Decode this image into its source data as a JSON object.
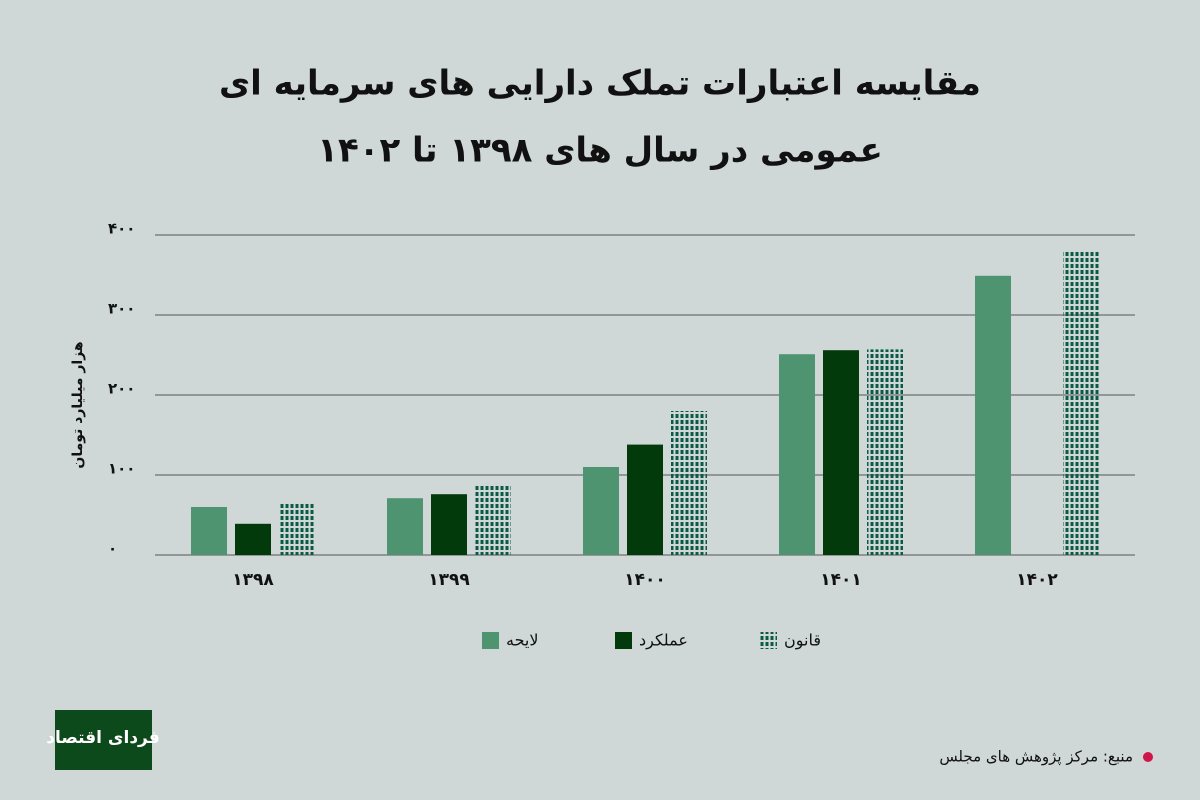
{
  "chart_data": {
    "type": "bar",
    "title": [
      "مقایسه اعتبارات تملک دارایی های سرمایه ای",
      "عمومی در سال های ۱۳۹۸ تا ۱۴۰۲"
    ],
    "y_label": "هزار میلیارد تومان",
    "categories": [
      "۱۳۹۸",
      "۱۳۹۹",
      "۱۴۰۰",
      "۱۴۰۱",
      "۱۴۰۲"
    ],
    "series": [
      {
        "name": "لایحه",
        "color": "#4e9470",
        "values": [
          60,
          71,
          110,
          251,
          349
        ]
      },
      {
        "name": "عملکرد",
        "color": "#023a0c",
        "values": [
          39,
          76,
          138,
          256,
          null
        ]
      },
      {
        "name": "قانون",
        "color": "#0b5a45",
        "fill_style": "striped",
        "values": [
          65,
          88,
          180,
          257,
          381
        ]
      }
    ],
    "ylim": [
      0,
      400
    ],
    "yticks": [
      {
        "value": 0,
        "label": "۰"
      },
      {
        "value": 100,
        "label": "۱۰۰"
      },
      {
        "value": 200,
        "label": "۲۰۰"
      },
      {
        "value": 300,
        "label": "۳۰۰"
      },
      {
        "value": 400,
        "label": "۴۰۰"
      }
    ],
    "grid": true,
    "source": "منبع: مرکز پژوهش های مجلس",
    "logo": "فردای اقتصاد"
  }
}
